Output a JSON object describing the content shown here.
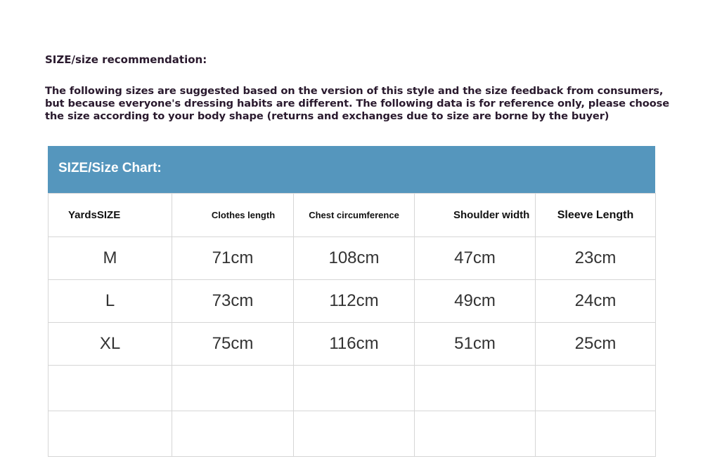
{
  "heading": "SIZE/size recommendation:",
  "intro": "The following sizes are suggested based on the version of this style and the size feedback from consumers, but because everyone's dressing habits are different. The following data is for reference only, please choose the size according to your body shape (returns and exchanges due to size are borne by the buyer)",
  "chart_title": "SIZE/Size Chart:",
  "header_color": "#5596bd",
  "columns": [
    "YardsSIZE",
    "Clothes length",
    "Chest circumference",
    "Shoulder width",
    "Sleeve Length"
  ],
  "rows": [
    [
      "M",
      "71cm",
      "108cm",
      "47cm",
      "23cm"
    ],
    [
      "L",
      "73cm",
      "112cm",
      "49cm",
      "24cm"
    ],
    [
      "XL",
      "75cm",
      "116cm",
      "51cm",
      "25cm"
    ],
    [
      "",
      "",
      "",
      "",
      ""
    ],
    [
      "",
      "",
      "",
      "",
      ""
    ]
  ]
}
